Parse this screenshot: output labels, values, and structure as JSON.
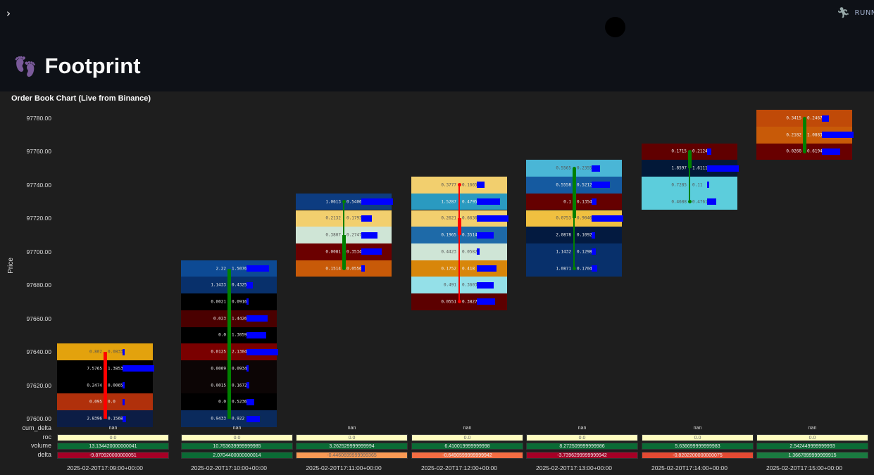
{
  "header": {
    "running_label": "RUNNING...",
    "running_icon": "running-man-icon",
    "expand_icon": "chevron-right-icon"
  },
  "page": {
    "title": "Footprint",
    "title_icon": "footprints-icon"
  },
  "chart_data": {
    "type": "footprint",
    "title": "Order Book Chart (Live from Binance)",
    "ylabel": "Price",
    "ylim": [
      97600,
      97780
    ],
    "yticks": [
      "97780.00",
      "97760.00",
      "97740.00",
      "97720.00",
      "97700.00",
      "97680.00",
      "97660.00",
      "97640.00",
      "97620.00",
      "97600.00"
    ],
    "bar_color": "#0000ff",
    "up_color": "#008000",
    "down_color": "#ff0000",
    "columns": [
      {
        "time": "2025-02-20T17:09:00+00:00",
        "open": 97640,
        "close": 97600,
        "high": 97640,
        "low": 97600,
        "cells": [
          [
            97640,
            "0.802",
            "0.0833",
            "#e3a20d"
          ],
          [
            97630,
            "7.5765",
            "1.3853",
            "#000000"
          ],
          [
            97620,
            "0.2474",
            "0.0065",
            "#000000"
          ],
          [
            97610,
            "0.095",
            "0.0",
            "#b0300b"
          ],
          [
            97600,
            "2.8396",
            "0.1568",
            "#0c1d45"
          ]
        ]
      },
      {
        "time": "2025-02-20T17:10:00+00:00",
        "open": 97600,
        "close": 97690,
        "high": 97690,
        "low": 97600,
        "cells": [
          [
            97690,
            "2.22",
            "1.5076",
            "#0d4a94"
          ],
          [
            97680,
            "1.1433",
            "0.4325",
            "#08306b"
          ],
          [
            97670,
            "0.0021",
            "0.0916",
            "#000000"
          ],
          [
            97660,
            "0.023",
            "1.4426",
            "#4a0000"
          ],
          [
            97650,
            "0.0",
            "1.3059",
            "#000000"
          ],
          [
            97640,
            "0.0125",
            "2.1304",
            "#7a0000"
          ],
          [
            97630,
            "0.0009",
            "0.0934",
            "#0c0505"
          ],
          [
            97620,
            "0.0015",
            "0.1672",
            "#0c0505"
          ],
          [
            97610,
            "0.0",
            "0.5236",
            "#000000"
          ],
          [
            97600,
            "0.9433",
            "0.922",
            "#0a2a5c"
          ]
        ]
      },
      {
        "time": "2025-02-20T17:11:00+00:00",
        "open": 97690,
        "close": 97710,
        "high": 97730,
        "low": 97690,
        "cells": [
          [
            97730,
            "1.0613",
            "0.5406",
            "#0d3c80"
          ],
          [
            97720,
            "0.2132",
            "0.1793",
            "#f2cf6e"
          ],
          [
            97710,
            "0.3807",
            "0.2747",
            "#cfe5d6"
          ],
          [
            97700,
            "0.0081",
            "0.3534",
            "#6b0000"
          ],
          [
            97690,
            "0.1514",
            "0.0556",
            "#c85a08"
          ]
        ]
      },
      {
        "time": "2025-02-20T17:12:00+00:00",
        "open": 97720,
        "close": 97710,
        "high": 97740,
        "low": 97670,
        "cells": [
          [
            97740,
            "0.3777",
            "0.1665",
            "#f2cf6e"
          ],
          [
            97730,
            "1.5287",
            "0.4795",
            "#2a9ac0"
          ],
          [
            97720,
            "0.2621",
            "0.6636",
            "#f2cf6e"
          ],
          [
            97710,
            "0.1965",
            "0.3514",
            "#1e6aa8"
          ],
          [
            97700,
            "0.4423",
            "0.0582",
            "#cfe5d6"
          ],
          [
            97690,
            "0.1752",
            "0.418",
            "#d8860a"
          ],
          [
            97680,
            "0.491",
            "0.3603",
            "#94e0e8"
          ],
          [
            97670,
            "0.0551",
            "0.3827",
            "#5c0000"
          ]
        ]
      },
      {
        "time": "2025-02-20T17:13:00+00:00",
        "open": 97720,
        "close": 97750,
        "high": 97750,
        "low": 97690,
        "cells": [
          [
            97750,
            "0.5565",
            "0.2355",
            "#4ab6d6"
          ],
          [
            97740,
            "0.5558",
            "0.5212",
            "#155aa0"
          ],
          [
            97730,
            "0.1",
            "0.1354",
            "#650000"
          ],
          [
            97720,
            "0.0753",
            "0.9046",
            "#f0c040"
          ],
          [
            97710,
            "2.0878",
            "0.1092",
            "#031a40"
          ],
          [
            97700,
            "1.1432",
            "0.1298",
            "#08306b"
          ],
          [
            97690,
            "1.0871",
            "0.1704",
            "#08306b"
          ]
        ]
      },
      {
        "time": "2025-02-20T17:14:00+00:00",
        "open": 97750,
        "close": 97760,
        "high": 97760,
        "low": 97730,
        "cells": [
          [
            97760,
            "0.1715",
            "0.2124",
            "#600000"
          ],
          [
            97750,
            "1.8597",
            "1.6111",
            "#021838"
          ],
          [
            97740,
            "0.7285",
            "0.11",
            "#5ccddc"
          ],
          [
            97730,
            "0.4688",
            "0.4761",
            "#5ccddc"
          ]
        ]
      },
      {
        "time": "2025-02-20T17:15:00+00:00",
        "open": 97760,
        "close": 97780,
        "high": 97780,
        "low": 97760,
        "cells": [
          [
            97780,
            "0.3415",
            "0.2467",
            "#c04a08"
          ],
          [
            97770,
            "0.2182",
            "1.0883",
            "#c85a08"
          ],
          [
            97760,
            "0.0268",
            "0.6194",
            "#680000"
          ]
        ]
      }
    ],
    "table": {
      "rows": [
        "cum_delta",
        "roc",
        "volume",
        "delta"
      ],
      "cum_delta": [
        [
          "nan",
          ""
        ],
        [
          "nan",
          ""
        ],
        [
          "nan",
          ""
        ],
        [
          "nan",
          ""
        ],
        [
          "nan",
          ""
        ],
        [
          "nan",
          ""
        ],
        [
          "nan",
          ""
        ]
      ],
      "roc": [
        [
          "0.0",
          "#fffdc0"
        ],
        [
          "0.0",
          "#fffdc0"
        ],
        [
          "0.0",
          "#fffdc0"
        ],
        [
          "0.0",
          "#fffdc0"
        ],
        [
          "0.0",
          "#fffdc0"
        ],
        [
          "0.0",
          "#fffdc0"
        ],
        [
          "0.0",
          "#fffdc0"
        ]
      ],
      "volume": [
        [
          "13.134420000000041",
          "#0b6b35"
        ],
        [
          "10.763639999999985",
          "#0b6b35"
        ],
        [
          "3.262529999999994",
          "#0b6b35"
        ],
        [
          "6.410019999999998",
          "#0b6b35"
        ],
        [
          "8.272509999999986",
          "#0b6b35"
        ],
        [
          "5.636699999999983",
          "#0b6b35"
        ],
        [
          "2.542449999999993",
          "#0b6b35"
        ]
      ],
      "delta": [
        [
          "-9.870920000000051",
          "#a50026"
        ],
        [
          "2.0704400000000014",
          "#0b6b35"
        ],
        [
          "-0.4460699999999365",
          "#f99a55"
        ],
        [
          "-0.6490599999999942",
          "#f46d43"
        ],
        [
          "-3.7396299999999942",
          "#a50026"
        ],
        [
          "-0.8202200000000075",
          "#e34a33"
        ],
        [
          "1.3667899999999915",
          "#1a7a40"
        ]
      ]
    }
  }
}
